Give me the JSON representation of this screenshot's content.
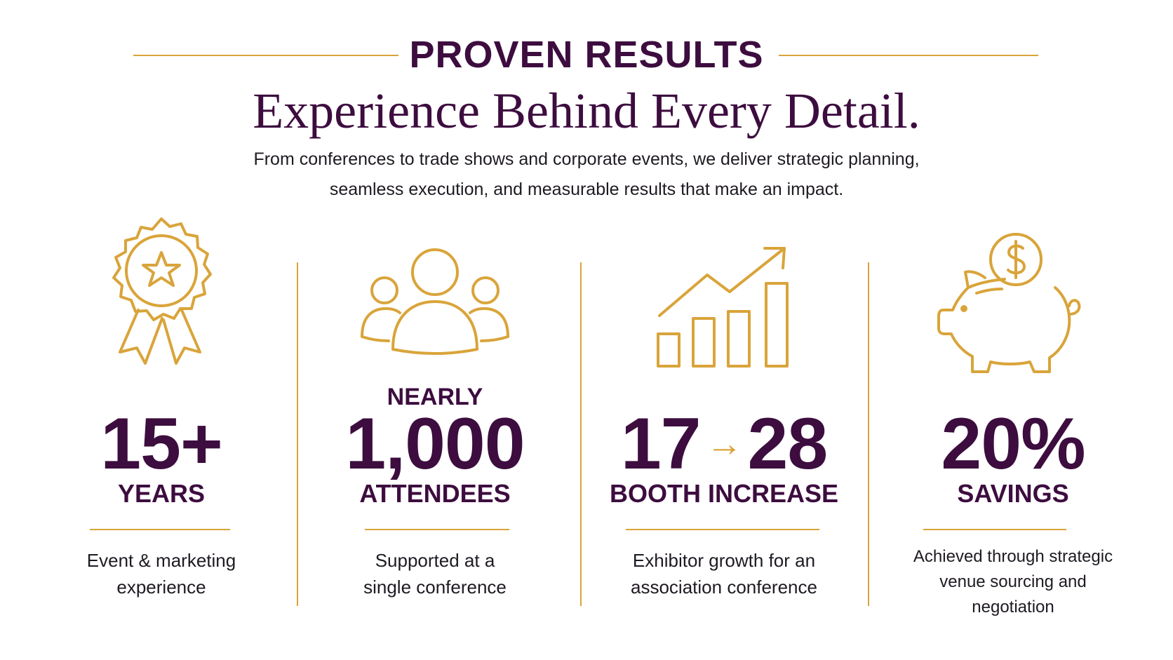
{
  "header": {
    "eyebrow": "PROVEN RESULTS",
    "headline": "Experience Behind Every Detail.",
    "lede_line1": "From conferences to trade shows and corporate events, we deliver strategic planning,",
    "lede_line2": "seamless execution, and measurable results that make an impact."
  },
  "colors": {
    "accent_gold": "#d9a43a",
    "primary_purple": "#3d0d3f",
    "body_text": "#1f1a22",
    "background": "#ffffff"
  },
  "stats": [
    {
      "icon": "award-ribbon-icon",
      "prefix": "",
      "value": "15+",
      "unit": "YEARS",
      "caption_line1": "Event & marketing",
      "caption_line2": "experience"
    },
    {
      "icon": "people-group-icon",
      "prefix": "NEARLY",
      "value": "1,000",
      "unit": "ATTENDEES",
      "caption_line1": "Supported at a",
      "caption_line2": "single conference"
    },
    {
      "icon": "growth-chart-icon",
      "prefix": "",
      "value_from": "17",
      "arrow": "→",
      "value_to": "28",
      "unit": "BOOTH INCREASE",
      "caption_line1": "Exhibitor growth for an",
      "caption_line2": "association conference"
    },
    {
      "icon": "piggy-bank-icon",
      "prefix": "",
      "value": "20%",
      "unit": "SAVINGS",
      "caption_line1": "Achieved through strategic",
      "caption_line2": "venue sourcing and",
      "caption_line3": "negotiation"
    }
  ]
}
